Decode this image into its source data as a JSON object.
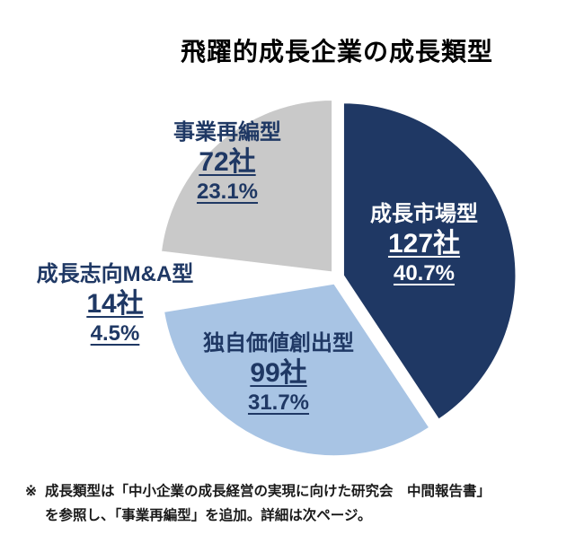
{
  "title": "飛躍的成長企業の成長類型",
  "colors": {
    "dark_navy": "#1F3864",
    "light_blue": "#A8C4E4",
    "gray": "#C9C9C9",
    "white_slice": "#FFFFFF",
    "label_text": "#1F3864",
    "label_text_on_dark": "#FFFFFF"
  },
  "chart_data": {
    "type": "pie",
    "title": "飛躍的成長企業の成長類型",
    "start_angle_deg": 0,
    "direction": "clockwise",
    "exploded": true,
    "legend": "none",
    "slices": [
      {
        "label": "成長市場型",
        "count": 127,
        "count_label": "127社",
        "percent": 40.7,
        "percent_label": "40.7%",
        "color": "#1F3864",
        "text_color": "#FFFFFF"
      },
      {
        "label": "独自価値創出型",
        "count": 99,
        "count_label": "99社",
        "percent": 31.7,
        "percent_label": "31.7%",
        "color": "#A8C4E4",
        "text_color": "#1F3864"
      },
      {
        "label": "成長志向M&A型",
        "count": 14,
        "count_label": "14社",
        "percent": 4.5,
        "percent_label": "4.5%",
        "color": "#FFFFFF",
        "text_color": "#1F3864"
      },
      {
        "label": "事業再編型",
        "count": 72,
        "count_label": "72社",
        "percent": 23.1,
        "percent_label": "23.1%",
        "color": "#C9C9C9",
        "text_color": "#1F3864"
      }
    ]
  },
  "footnote": {
    "marker": "※",
    "line1": "成長類型は「中小企業の成長経営の実現に向けた研究会　中間報告書」",
    "line2": "を参照し、「事業再編型」を追加。詳細は次ページ。"
  }
}
